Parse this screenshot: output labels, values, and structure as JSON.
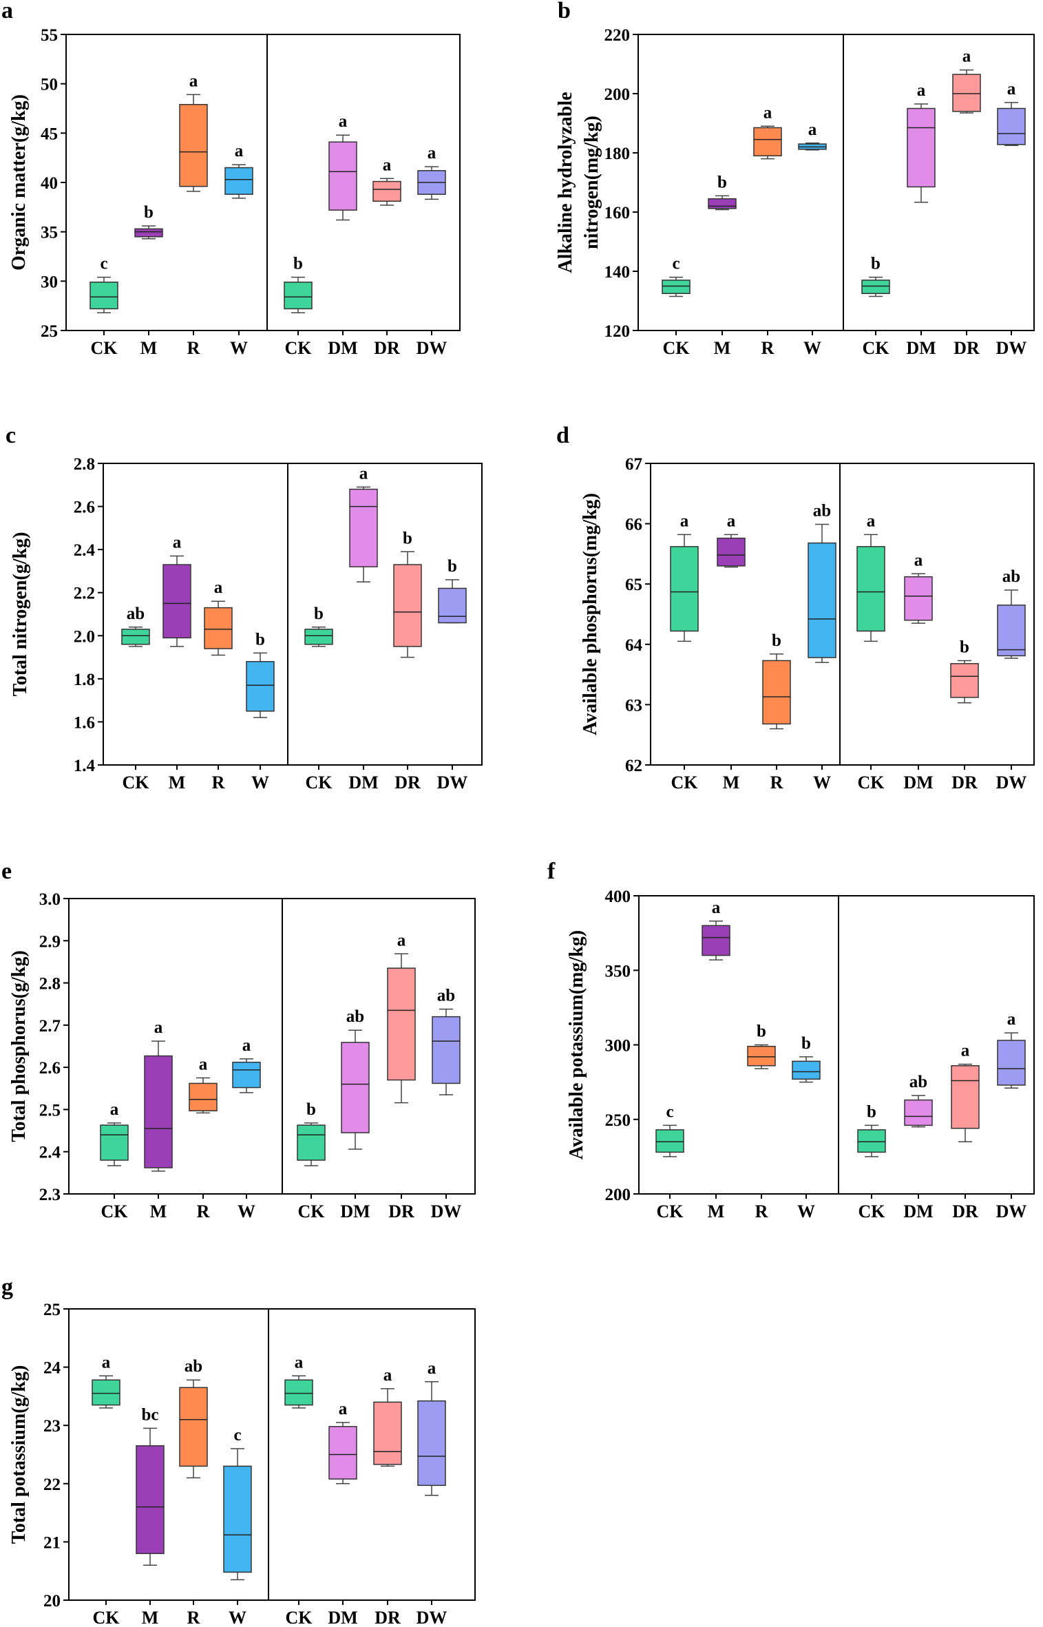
{
  "chart_data": [
    {
      "type": "box",
      "panel": "a",
      "title": "",
      "ylabel": "Organic matter(g/kg)",
      "xlabel": "",
      "ylim": [
        25,
        55
      ],
      "yticks": [
        "25",
        "30",
        "35",
        "40",
        "45",
        "50",
        "55"
      ],
      "categories": [
        "CK",
        "M",
        "R",
        "W",
        "CK",
        "DM",
        "DR",
        "DW"
      ],
      "series": [
        {
          "name": "CK",
          "group": 1,
          "color": "#3ed49a",
          "whisker_low": 26.8,
          "q1": 27.2,
          "median": 28.4,
          "q3": 29.9,
          "whisker_high": 30.4,
          "letter": "c"
        },
        {
          "name": "M",
          "group": 1,
          "color": "#9a3fb5",
          "whisker_low": 34.3,
          "q1": 34.5,
          "median": 35.0,
          "q3": 35.3,
          "whisker_high": 35.6,
          "letter": "b"
        },
        {
          "name": "R",
          "group": 1,
          "color": "#ff8a50",
          "whisker_low": 39.1,
          "q1": 39.6,
          "median": 43.1,
          "q3": 47.9,
          "whisker_high": 48.9,
          "letter": "a"
        },
        {
          "name": "W",
          "group": 1,
          "color": "#42b4f0",
          "whisker_low": 38.4,
          "q1": 38.8,
          "median": 40.3,
          "q3": 41.5,
          "whisker_high": 41.8,
          "letter": "a"
        },
        {
          "name": "CK",
          "group": 2,
          "color": "#3ed49a",
          "whisker_low": 26.8,
          "q1": 27.2,
          "median": 28.4,
          "q3": 29.9,
          "whisker_high": 30.4,
          "letter": "b"
        },
        {
          "name": "DM",
          "group": 2,
          "color": "#e08ce8",
          "whisker_low": 36.2,
          "q1": 37.2,
          "median": 41.1,
          "q3": 44.1,
          "whisker_high": 44.8,
          "letter": "a"
        },
        {
          "name": "DR",
          "group": 2,
          "color": "#ff9a9a",
          "whisker_low": 37.7,
          "q1": 38.1,
          "median": 39.3,
          "q3": 40.1,
          "whisker_high": 40.4,
          "letter": "a"
        },
        {
          "name": "DW",
          "group": 2,
          "color": "#9b9cf2",
          "whisker_low": 38.3,
          "q1": 38.8,
          "median": 40.0,
          "q3": 41.2,
          "whisker_high": 41.6,
          "letter": "a"
        }
      ]
    },
    {
      "type": "box",
      "panel": "b",
      "title": "",
      "ylabel": "Alkaline hydrolyzable nitrogen(mg/kg)",
      "ylabel_lines": [
        "Alkaline hydrolyzable",
        "nitrogen(mg/kg)"
      ],
      "xlabel": "",
      "ylim": [
        120,
        220
      ],
      "yticks": [
        "120",
        "140",
        "160",
        "180",
        "200",
        "220"
      ],
      "categories": [
        "CK",
        "M",
        "R",
        "W",
        "CK",
        "DM",
        "DR",
        "DW"
      ],
      "series": [
        {
          "name": "CK",
          "group": 1,
          "color": "#3ed49a",
          "whisker_low": 131.5,
          "q1": 132.5,
          "median": 135.0,
          "q3": 137.0,
          "whisker_high": 138.0,
          "letter": "c"
        },
        {
          "name": "M",
          "group": 1,
          "color": "#9a3fb5",
          "whisker_low": 160.8,
          "q1": 161.2,
          "median": 162.0,
          "q3": 164.5,
          "whisker_high": 165.5,
          "letter": "b"
        },
        {
          "name": "R",
          "group": 1,
          "color": "#ff8a50",
          "whisker_low": 178.0,
          "q1": 179.0,
          "median": 184.5,
          "q3": 188.5,
          "whisker_high": 189.0,
          "letter": "a"
        },
        {
          "name": "W",
          "group": 1,
          "color": "#42b4f0",
          "whisker_low": 181.0,
          "q1": 181.2,
          "median": 182.0,
          "q3": 183.0,
          "whisker_high": 183.3,
          "letter": "a"
        },
        {
          "name": "CK",
          "group": 2,
          "color": "#3ed49a",
          "whisker_low": 131.5,
          "q1": 132.5,
          "median": 135.0,
          "q3": 137.0,
          "whisker_high": 138.0,
          "letter": "b"
        },
        {
          "name": "DM",
          "group": 2,
          "color": "#e08ce8",
          "whisker_low": 163.3,
          "q1": 168.5,
          "median": 188.5,
          "q3": 195.0,
          "whisker_high": 196.5,
          "letter": "a"
        },
        {
          "name": "DR",
          "group": 2,
          "color": "#ff9a9a",
          "whisker_low": 193.5,
          "q1": 194.0,
          "median": 200.0,
          "q3": 206.5,
          "whisker_high": 208.0,
          "letter": "a"
        },
        {
          "name": "DW",
          "group": 2,
          "color": "#9b9cf2",
          "whisker_low": 182.5,
          "q1": 182.8,
          "median": 186.5,
          "q3": 195.0,
          "whisker_high": 197.0,
          "letter": "a"
        }
      ]
    },
    {
      "type": "box",
      "panel": "c",
      "title": "",
      "ylabel": "Total nitrogen(g/kg)",
      "xlabel": "",
      "ylim": [
        1.4,
        2.8
      ],
      "yticks": [
        "1.4",
        "1.6",
        "1.8",
        "2.0",
        "2.2",
        "2.4",
        "2.6",
        "2.8"
      ],
      "categories": [
        "CK",
        "M",
        "R",
        "W",
        "CK",
        "DM",
        "DR",
        "DW"
      ],
      "series": [
        {
          "name": "CK",
          "group": 1,
          "color": "#3ed49a",
          "whisker_low": 1.95,
          "q1": 1.96,
          "median": 2.0,
          "q3": 2.03,
          "whisker_high": 2.04,
          "letter": "ab"
        },
        {
          "name": "M",
          "group": 1,
          "color": "#9a3fb5",
          "whisker_low": 1.95,
          "q1": 1.99,
          "median": 2.15,
          "q3": 2.33,
          "whisker_high": 2.37,
          "letter": "a"
        },
        {
          "name": "R",
          "group": 1,
          "color": "#ff8a50",
          "whisker_low": 1.91,
          "q1": 1.94,
          "median": 2.03,
          "q3": 2.13,
          "whisker_high": 2.16,
          "letter": "a"
        },
        {
          "name": "W",
          "group": 1,
          "color": "#42b4f0",
          "whisker_low": 1.62,
          "q1": 1.65,
          "median": 1.77,
          "q3": 1.88,
          "whisker_high": 1.92,
          "letter": "b"
        },
        {
          "name": "CK",
          "group": 2,
          "color": "#3ed49a",
          "whisker_low": 1.95,
          "q1": 1.96,
          "median": 2.0,
          "q3": 2.03,
          "whisker_high": 2.04,
          "letter": "b"
        },
        {
          "name": "DM",
          "group": 2,
          "color": "#e08ce8",
          "whisker_low": 2.25,
          "q1": 2.32,
          "median": 2.6,
          "q3": 2.68,
          "whisker_high": 2.69,
          "letter": "a"
        },
        {
          "name": "DR",
          "group": 2,
          "color": "#ff9a9a",
          "whisker_low": 1.9,
          "q1": 1.95,
          "median": 2.11,
          "q3": 2.33,
          "whisker_high": 2.39,
          "letter": "b"
        },
        {
          "name": "DW",
          "group": 2,
          "color": "#9b9cf2",
          "whisker_low": 2.06,
          "q1": 2.06,
          "median": 2.09,
          "q3": 2.22,
          "whisker_high": 2.26,
          "letter": "b"
        }
      ]
    },
    {
      "type": "box",
      "panel": "d",
      "title": "",
      "ylabel": "Available phosphorus(mg/kg)",
      "xlabel": "",
      "ylim": [
        62,
        67
      ],
      "yticks": [
        "62",
        "63",
        "64",
        "65",
        "66",
        "67"
      ],
      "categories": [
        "CK",
        "M",
        "R",
        "W",
        "CK",
        "DM",
        "DR",
        "DW"
      ],
      "series": [
        {
          "name": "CK",
          "group": 1,
          "color": "#3ed49a",
          "whisker_low": 64.05,
          "q1": 64.22,
          "median": 64.87,
          "q3": 65.62,
          "whisker_high": 65.82,
          "letter": "a"
        },
        {
          "name": "M",
          "group": 1,
          "color": "#9a3fb5",
          "whisker_low": 65.28,
          "q1": 65.3,
          "median": 65.48,
          "q3": 65.76,
          "whisker_high": 65.82,
          "letter": "a"
        },
        {
          "name": "R",
          "group": 1,
          "color": "#ff8a50",
          "whisker_low": 62.6,
          "q1": 62.68,
          "median": 63.13,
          "q3": 63.73,
          "whisker_high": 63.84,
          "letter": "b"
        },
        {
          "name": "W",
          "group": 1,
          "color": "#42b4f0",
          "whisker_low": 63.7,
          "q1": 63.78,
          "median": 64.42,
          "q3": 65.68,
          "whisker_high": 65.99,
          "letter": "ab"
        },
        {
          "name": "CK",
          "group": 2,
          "color": "#3ed49a",
          "whisker_low": 64.05,
          "q1": 64.22,
          "median": 64.87,
          "q3": 65.62,
          "whisker_high": 65.82,
          "letter": "a"
        },
        {
          "name": "DM",
          "group": 2,
          "color": "#e08ce8",
          "whisker_low": 64.35,
          "q1": 64.4,
          "median": 64.8,
          "q3": 65.12,
          "whisker_high": 65.17,
          "letter": "a"
        },
        {
          "name": "DR",
          "group": 2,
          "color": "#ff9a9a",
          "whisker_low": 63.03,
          "q1": 63.12,
          "median": 63.47,
          "q3": 63.68,
          "whisker_high": 63.73,
          "letter": "b"
        },
        {
          "name": "DW",
          "group": 2,
          "color": "#9b9cf2",
          "whisker_low": 63.77,
          "q1": 63.81,
          "median": 63.91,
          "q3": 64.65,
          "whisker_high": 64.9,
          "letter": "ab"
        }
      ]
    },
    {
      "type": "box",
      "panel": "e",
      "title": "",
      "ylabel": "Total phosphorus(g/kg)",
      "xlabel": "",
      "ylim": [
        2.3,
        3.0
      ],
      "yticks": [
        "2.3",
        "2.4",
        "2.5",
        "2.6",
        "2.7",
        "2.8",
        "2.9",
        "3.0"
      ],
      "categories": [
        "CK",
        "M",
        "R",
        "W",
        "CK",
        "DM",
        "DR",
        "DW"
      ],
      "series": [
        {
          "name": "CK",
          "group": 1,
          "color": "#3ed49a",
          "whisker_low": 2.367,
          "q1": 2.38,
          "median": 2.44,
          "q3": 2.463,
          "whisker_high": 2.468,
          "letter": "a"
        },
        {
          "name": "M",
          "group": 1,
          "color": "#9a3fb5",
          "whisker_low": 2.354,
          "q1": 2.362,
          "median": 2.455,
          "q3": 2.627,
          "whisker_high": 2.662,
          "letter": "a"
        },
        {
          "name": "R",
          "group": 1,
          "color": "#ff8a50",
          "whisker_low": 2.492,
          "q1": 2.497,
          "median": 2.524,
          "q3": 2.562,
          "whisker_high": 2.575,
          "letter": "a"
        },
        {
          "name": "W",
          "group": 1,
          "color": "#42b4f0",
          "whisker_low": 2.54,
          "q1": 2.552,
          "median": 2.594,
          "q3": 2.612,
          "whisker_high": 2.62,
          "letter": "a"
        },
        {
          "name": "CK",
          "group": 2,
          "color": "#3ed49a",
          "whisker_low": 2.367,
          "q1": 2.38,
          "median": 2.44,
          "q3": 2.463,
          "whisker_high": 2.468,
          "letter": "b"
        },
        {
          "name": "DM",
          "group": 2,
          "color": "#e08ce8",
          "whisker_low": 2.406,
          "q1": 2.445,
          "median": 2.56,
          "q3": 2.659,
          "whisker_high": 2.688,
          "letter": "ab"
        },
        {
          "name": "DR",
          "group": 2,
          "color": "#ff9a9a",
          "whisker_low": 2.516,
          "q1": 2.57,
          "median": 2.735,
          "q3": 2.835,
          "whisker_high": 2.869,
          "letter": "a"
        },
        {
          "name": "DW",
          "group": 2,
          "color": "#9b9cf2",
          "whisker_low": 2.535,
          "q1": 2.562,
          "median": 2.662,
          "q3": 2.72,
          "whisker_high": 2.738,
          "letter": "ab"
        }
      ]
    },
    {
      "type": "box",
      "panel": "f",
      "title": "",
      "ylabel": "Available potassium(mg/kg)",
      "xlabel": "",
      "ylim": [
        200,
        400
      ],
      "yticks": [
        "200",
        "250",
        "300",
        "350",
        "400"
      ],
      "categories": [
        "CK",
        "M",
        "R",
        "W",
        "CK",
        "DM",
        "DR",
        "DW"
      ],
      "series": [
        {
          "name": "CK",
          "group": 1,
          "color": "#3ed49a",
          "whisker_low": 225.0,
          "q1": 228.0,
          "median": 235.0,
          "q3": 243.0,
          "whisker_high": 246.0,
          "letter": "c"
        },
        {
          "name": "M",
          "group": 1,
          "color": "#9a3fb5",
          "whisker_low": 357.0,
          "q1": 360.0,
          "median": 372.0,
          "q3": 380.0,
          "whisker_high": 383.0,
          "letter": "a"
        },
        {
          "name": "R",
          "group": 1,
          "color": "#ff8a50",
          "whisker_low": 284.0,
          "q1": 286.0,
          "median": 292.0,
          "q3": 299.0,
          "whisker_high": 300.0,
          "letter": "b"
        },
        {
          "name": "W",
          "group": 1,
          "color": "#42b4f0",
          "whisker_low": 275.0,
          "q1": 277.0,
          "median": 282.0,
          "q3": 289.0,
          "whisker_high": 292.0,
          "letter": "b"
        },
        {
          "name": "CK",
          "group": 2,
          "color": "#3ed49a",
          "whisker_low": 225.0,
          "q1": 228.0,
          "median": 235.0,
          "q3": 243.0,
          "whisker_high": 246.0,
          "letter": "b"
        },
        {
          "name": "DM",
          "group": 2,
          "color": "#e08ce8",
          "whisker_low": 245.0,
          "q1": 246.0,
          "median": 252.0,
          "q3": 263.0,
          "whisker_high": 266.0,
          "letter": "ab"
        },
        {
          "name": "DR",
          "group": 2,
          "color": "#ff9a9a",
          "whisker_low": 235.0,
          "q1": 244.0,
          "median": 276.0,
          "q3": 286.0,
          "whisker_high": 287.0,
          "letter": "a"
        },
        {
          "name": "DW",
          "group": 2,
          "color": "#9b9cf2",
          "whisker_low": 271.0,
          "q1": 273.0,
          "median": 284.0,
          "q3": 303.0,
          "whisker_high": 308.0,
          "letter": "a"
        }
      ]
    },
    {
      "type": "box",
      "panel": "g",
      "title": "",
      "ylabel": "Total potassium(g/kg)",
      "xlabel": "",
      "ylim": [
        20,
        25
      ],
      "yticks": [
        "20",
        "21",
        "22",
        "23",
        "24",
        "25"
      ],
      "categories": [
        "CK",
        "M",
        "R",
        "W",
        "CK",
        "DM",
        "DR",
        "DW"
      ],
      "series": [
        {
          "name": "CK",
          "group": 1,
          "color": "#3ed49a",
          "whisker_low": 23.3,
          "q1": 23.35,
          "median": 23.55,
          "q3": 23.78,
          "whisker_high": 23.85,
          "letter": "a"
        },
        {
          "name": "M",
          "group": 1,
          "color": "#9a3fb5",
          "whisker_low": 20.6,
          "q1": 20.8,
          "median": 21.6,
          "q3": 22.65,
          "whisker_high": 22.95,
          "letter": "bc"
        },
        {
          "name": "R",
          "group": 1,
          "color": "#ff8a50",
          "whisker_low": 22.1,
          "q1": 22.3,
          "median": 23.1,
          "q3": 23.65,
          "whisker_high": 23.78,
          "letter": "ab"
        },
        {
          "name": "W",
          "group": 1,
          "color": "#42b4f0",
          "whisker_low": 20.35,
          "q1": 20.48,
          "median": 21.12,
          "q3": 22.3,
          "whisker_high": 22.6,
          "letter": "c"
        },
        {
          "name": "CK",
          "group": 2,
          "color": "#3ed49a",
          "whisker_low": 23.3,
          "q1": 23.35,
          "median": 23.55,
          "q3": 23.78,
          "whisker_high": 23.85,
          "letter": "a"
        },
        {
          "name": "DM",
          "group": 2,
          "color": "#e08ce8",
          "whisker_low": 22.0,
          "q1": 22.08,
          "median": 22.5,
          "q3": 22.98,
          "whisker_high": 23.05,
          "letter": "a"
        },
        {
          "name": "DR",
          "group": 2,
          "color": "#ff9a9a",
          "whisker_low": 22.3,
          "q1": 22.33,
          "median": 22.55,
          "q3": 23.4,
          "whisker_high": 23.63,
          "letter": "a"
        },
        {
          "name": "DW",
          "group": 2,
          "color": "#9b9cf2",
          "whisker_low": 21.8,
          "q1": 21.97,
          "median": 22.47,
          "q3": 23.42,
          "whisker_high": 23.75,
          "letter": "a"
        }
      ]
    }
  ]
}
